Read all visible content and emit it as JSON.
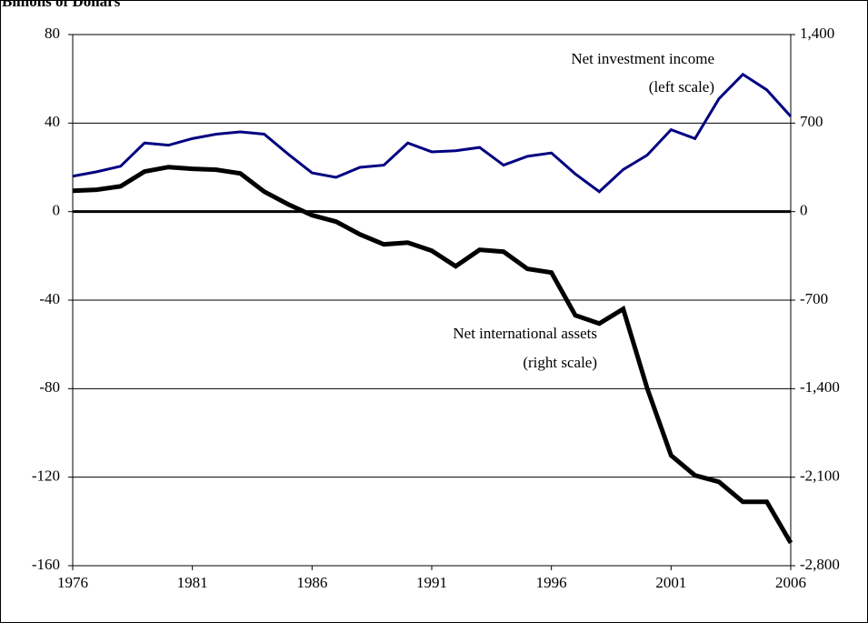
{
  "chart_data": {
    "type": "line",
    "title": "Billions of Dollars",
    "x": [
      1976,
      1977,
      1978,
      1979,
      1980,
      1981,
      1982,
      1983,
      1984,
      1985,
      1986,
      1987,
      1988,
      1989,
      1990,
      1991,
      1992,
      1993,
      1994,
      1995,
      1996,
      1997,
      1998,
      1999,
      2000,
      2001,
      2002,
      2003,
      2004,
      2005,
      2006
    ],
    "xlim": [
      1976,
      2006
    ],
    "xticks": [
      1976,
      1981,
      1986,
      1991,
      1996,
      2001,
      2006
    ],
    "ylim": [
      -160,
      80
    ],
    "yticks": [
      -160,
      -120,
      -80,
      -40,
      0,
      40,
      80
    ],
    "y2lim": [
      -2800,
      1400
    ],
    "y2ticks": [
      {
        "value": -2800,
        "label": "-2,800"
      },
      {
        "value": -2100,
        "label": "-2,100"
      },
      {
        "value": -1400,
        "label": "-1,400"
      },
      -700,
      0,
      700,
      {
        "value": 1400,
        "label": "1,400"
      }
    ],
    "grid": true,
    "annotations": [
      "Net investment income",
      "(left scale)",
      "Net international assets",
      "(right scale)"
    ],
    "series": [
      {
        "name": "Net investment income",
        "color": "#000080",
        "values": [
          16,
          18,
          20.5,
          31,
          30,
          33,
          35,
          36,
          35,
          26,
          17.5,
          15.5,
          20,
          21,
          31,
          27,
          27.5,
          29,
          21,
          25,
          26.5,
          17,
          9,
          19,
          25.5,
          37,
          33,
          51,
          62,
          55,
          43
        ]
      },
      {
        "name": "Net international assets",
        "color": "#000000",
        "axis": "y2",
        "values": [
          165,
          173,
          200,
          317,
          352,
          338,
          331,
          302,
          158,
          58,
          -29,
          -79,
          -180,
          -259,
          -245,
          -309,
          -432,
          -302,
          -317,
          -453,
          -482,
          -820,
          -885,
          -770,
          -1396,
          -1928,
          -2086,
          -2137,
          -2295,
          -2295,
          -2619
        ]
      }
    ]
  }
}
